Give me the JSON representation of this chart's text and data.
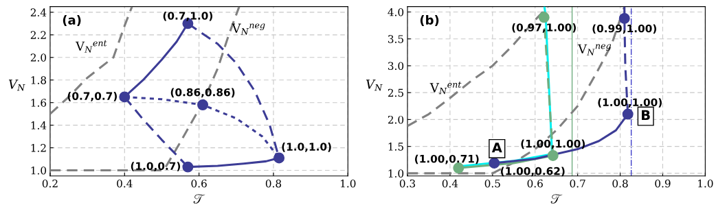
{
  "chart_data": [
    {
      "type": "line",
      "xlabel": "𝒯",
      "ylabel": "V$_{N}$",
      "xlim": [
        0.2,
        1.0
      ],
      "ylim": [
        0.95,
        2.45
      ],
      "xticks": [
        0.2,
        0.4,
        0.6,
        0.8,
        {
          "value": 1.0,
          "label": "1.0"
        }
      ],
      "yticks": [
        {
          "value": 1.0,
          "label": "1.0"
        },
        1.2,
        1.4,
        1.6,
        1.8,
        {
          "value": 2.0,
          "label": "2.0"
        },
        2.2,
        2.4
      ],
      "grid": true,
      "series": [
        {
          "color": "#808080",
          "line_style": "dashed",
          "x": [
            0.2,
            0.25,
            0.3,
            0.37,
            0.4,
            0.42
          ],
          "values": [
            1.5,
            1.65,
            1.82,
            2.0,
            2.28,
            2.45
          ]
        },
        {
          "color": "#808080",
          "line_style": "dashed",
          "x": [
            0.2,
            0.505,
            0.55,
            0.61,
            0.65,
            0.68,
            0.708
          ],
          "values": [
            1.0,
            1.0,
            1.25,
            1.6,
            1.9,
            2.2,
            2.45
          ]
        },
        {
          "color": "#3c3c96",
          "line_style": "solid",
          "x": [
            0.4,
            0.45,
            0.5,
            0.54,
            0.57
          ],
          "values": [
            1.65,
            1.8,
            1.98,
            2.14,
            2.3
          ]
        },
        {
          "color": "#3c3c96",
          "line_style": "solid",
          "x": [
            0.57,
            0.65,
            0.72,
            0.78,
            0.815
          ],
          "values": [
            1.03,
            1.04,
            1.06,
            1.08,
            1.11
          ]
        },
        {
          "color": "#3c3c96",
          "line_style": "dashed",
          "x": [
            0.57,
            0.65,
            0.7,
            0.75,
            0.79,
            0.815
          ],
          "values": [
            2.3,
            2.12,
            1.95,
            1.7,
            1.4,
            1.11
          ]
        },
        {
          "color": "#3c3c96",
          "line_style": "dashed",
          "x": [
            0.4,
            0.45,
            0.5,
            0.55,
            0.57
          ],
          "values": [
            1.65,
            1.45,
            1.27,
            1.1,
            1.03
          ]
        },
        {
          "color": "#3c3c96",
          "line_style": "dotted",
          "x": [
            0.4,
            0.5,
            0.61,
            0.7,
            0.77,
            0.815
          ],
          "values": [
            1.65,
            1.63,
            1.58,
            1.46,
            1.3,
            1.11
          ]
        },
        {
          "type": "scatter",
          "color": "#3c3c96",
          "marker": "circle",
          "x": [
            0.57,
            0.4,
            0.61,
            0.815,
            0.57
          ],
          "values": [
            2.3,
            1.65,
            1.58,
            1.11,
            1.03
          ]
        }
      ],
      "annotations": [
        "(a)",
        {
          "text": "(0.7,1.0)",
          "x": 0.57,
          "y": 2.3
        },
        {
          "text": "(0.7,0.7)",
          "x": 0.4,
          "y": 1.65
        },
        {
          "text": "(0.86,0.86)",
          "x": 0.61,
          "y": 1.58
        },
        {
          "text": "(1.0,1.0)",
          "x": 0.815,
          "y": 1.11
        },
        {
          "text": "(1.0,0.7)",
          "x": 0.57,
          "y": 1.03
        },
        {
          "text": "V$_{N}$$^{ent}$",
          "x": 0.3,
          "y": 1.82
        },
        {
          "text": "V$_{N}$$^{neg}$",
          "x": 0.68,
          "y": 2.2
        }
      ]
    },
    {
      "type": "line",
      "xlabel": "𝒯",
      "ylabel": "V$_{N}$",
      "xlim": [
        0.3,
        1.0
      ],
      "ylim": [
        0.95,
        4.1
      ],
      "xticks": [
        0.3,
        0.4,
        0.5,
        0.6,
        0.7,
        0.8,
        0.9,
        {
          "value": 1.0,
          "label": "1.0"
        }
      ],
      "yticks": [
        {
          "value": 1.0,
          "label": "1.0"
        },
        1.5,
        {
          "value": 2.0,
          "label": "2.0"
        },
        2.5,
        {
          "value": 3.0,
          "label": "3.0"
        },
        3.5,
        {
          "value": 4.0,
          "label": "4.0"
        }
      ],
      "grid": true,
      "ref_lines": [
        {
          "axis": "x",
          "value": 0.687,
          "color": "#6fae7f",
          "line_style": "solid"
        },
        {
          "axis": "x",
          "value": 0.826,
          "color": "#3c3cc8",
          "line_style": "dashdot"
        }
      ],
      "series": [
        {
          "color": "#808080",
          "line_style": "dashed",
          "x": [
            0.3,
            0.35,
            0.4,
            0.45,
            0.5,
            0.55,
            0.6,
            0.63
          ],
          "values": [
            1.88,
            2.1,
            2.4,
            2.72,
            3.0,
            3.4,
            3.85,
            4.1
          ]
        },
        {
          "color": "#808080",
          "line_style": "dashed",
          "x": [
            0.3,
            0.5,
            0.55,
            0.6,
            0.65,
            0.7,
            0.75,
            0.78,
            0.81
          ],
          "values": [
            1.0,
            1.0,
            1.2,
            1.45,
            1.8,
            2.25,
            2.95,
            3.4,
            4.1
          ]
        },
        {
          "color": "#00f0f0",
          "line_style": "solid",
          "x": [
            0.42,
            0.55,
            0.64,
            0.625,
            0.622
          ],
          "values": [
            1.13,
            1.23,
            1.36,
            3.9,
            4.1
          ]
        },
        {
          "color": "#6fae7f",
          "line_style": "solid",
          "x": [
            0.42,
            0.55,
            0.642
          ],
          "values": [
            1.1,
            1.19,
            1.33
          ]
        },
        {
          "color": "#6fae7f",
          "line_style": "dashed",
          "x": [
            0.642,
            0.621,
            0.62
          ],
          "values": [
            1.33,
            3.9,
            4.1
          ]
        },
        {
          "color": "#3c3c96",
          "line_style": "solid",
          "x": [
            0.504,
            0.6,
            0.7,
            0.75,
            0.79,
            0.818
          ],
          "values": [
            1.19,
            1.27,
            1.45,
            1.6,
            1.8,
            2.1
          ]
        },
        {
          "color": "#3c3c96",
          "line_style": "dashed",
          "x": [
            0.818,
            0.812,
            0.81,
            0.81
          ],
          "values": [
            2.1,
            3.0,
            3.88,
            4.1
          ]
        },
        {
          "type": "scatter",
          "color": "#6fae7f",
          "marker": "circle",
          "x": [
            0.42,
            0.642,
            0.621
          ],
          "values": [
            1.1,
            1.33,
            3.9
          ]
        },
        {
          "type": "scatter",
          "color": "#3c3c96",
          "marker": "circle",
          "x": [
            0.504,
            0.818,
            0.81
          ],
          "values": [
            1.19,
            2.1,
            3.88
          ]
        }
      ],
      "annotations": [
        "(b)",
        {
          "text": "(0.97,1.00)",
          "x": 0.621,
          "y": 3.9
        },
        {
          "text": "(0.99,1.00)",
          "x": 0.81,
          "y": 3.88
        },
        {
          "text": "(1.00,1.00)",
          "x": 0.818,
          "y": 2.1
        },
        {
          "text": "(1.00,1.00)",
          "x": 0.642,
          "y": 1.33
        },
        {
          "text": "(1.00,0.71)",
          "x": 0.42,
          "y": 1.1
        },
        {
          "text": "(1.00,0.62)",
          "x": 0.504,
          "y": 1.19
        },
        {
          "text": "A",
          "x": 0.504,
          "y": 1.19
        },
        {
          "text": "B",
          "x": 0.818,
          "y": 2.1
        },
        {
          "text": "V$_{N}$$^{ent}$",
          "x": 0.4,
          "y": 2.4
        },
        {
          "text": "V$_{N}$$^{neg}$",
          "x": 0.75,
          "y": 2.95
        }
      ]
    }
  ]
}
